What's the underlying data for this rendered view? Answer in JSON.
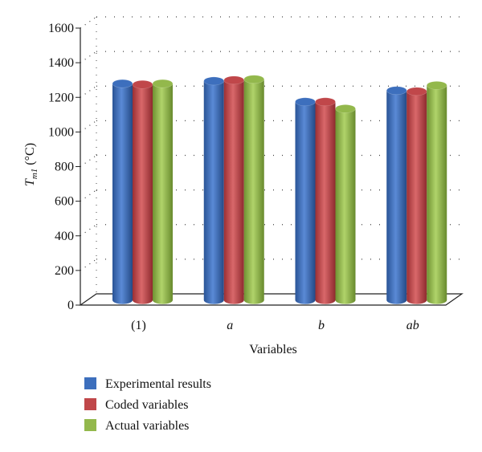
{
  "chart_data": {
    "type": "bar",
    "categories": [
      "(1)",
      "a",
      "b",
      "ab"
    ],
    "series": [
      {
        "name": "Experimental results",
        "values": [
          1250,
          1265,
          1145,
          1210
        ],
        "color": "#3d6fbd"
      },
      {
        "name": "Coded variables",
        "values": [
          1245,
          1270,
          1145,
          1205
        ],
        "color": "#c0474a"
      },
      {
        "name": "Actual variables",
        "values": [
          1250,
          1275,
          1105,
          1240
        ],
        "color": "#93b84c"
      }
    ],
    "xlabel": "Variables",
    "ylabel_main": "T",
    "ylabel_sub": "m1",
    "ylabel_unit": " (°C)",
    "ylim": [
      0,
      1600
    ],
    "yticks": [
      0,
      200,
      400,
      600,
      800,
      1000,
      1200,
      1400,
      1600
    ],
    "grid": true,
    "legend_position": "bottom-left"
  }
}
